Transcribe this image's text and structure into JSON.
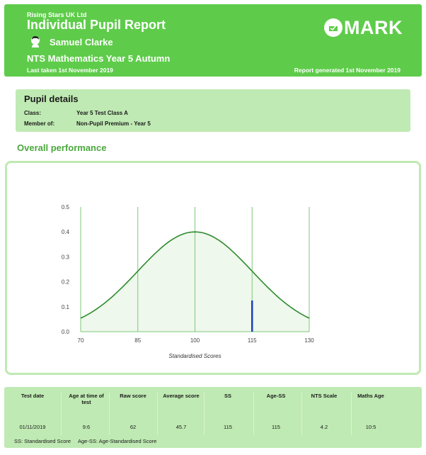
{
  "header": {
    "company": "Rising Stars UK Ltd",
    "report_title": "Individual Pupil Report",
    "pupil_name": "Samuel Clarke",
    "test_name": "NTS Mathematics Year 5 Autumn",
    "last_taken": "Last taken 1st November 2019",
    "generated": "Report generated 1st November 2019",
    "logo_text": "MARK",
    "logo_icon": "mark-logo-icon",
    "avatar_icon": "pupil-avatar-icon",
    "background_color": "#5ecc4a"
  },
  "pupil_details": {
    "title": "Pupil details",
    "rows": [
      {
        "label": "Class:",
        "value": "Year 5 Test Class A"
      },
      {
        "label": "Member of:",
        "value": "Non-Pupil Premium - Year 5"
      }
    ],
    "background_color": "#bfeab3"
  },
  "overall_performance": {
    "title": "Overall performance"
  },
  "chart_data": {
    "type": "area",
    "title": "",
    "xlabel": "Standardised Scores",
    "ylabel": "",
    "xlim": [
      70,
      130
    ],
    "ylim": [
      0,
      0.5
    ],
    "x_ticks": [
      "70",
      "85",
      "100",
      "115",
      "130"
    ],
    "y_ticks": [
      "0.0",
      "0.1",
      "0.2",
      "0.3",
      "0.4",
      "0.5"
    ],
    "curve": {
      "distribution": "normal",
      "mean": 100,
      "sd": 15,
      "peak": 0.4
    },
    "marker": {
      "x": 115,
      "y": 0.125,
      "color": "#1f3fbf"
    },
    "grid": "vertical",
    "line_color": "#2e8b2e",
    "fill_color": "#eef8ec"
  },
  "results": {
    "columns": [
      {
        "header": "Test date",
        "value": "01/11/2019"
      },
      {
        "header": "Age at time of test",
        "value": "9:6"
      },
      {
        "header": "Raw score",
        "value": "62"
      },
      {
        "header": "Average score",
        "value": "45.7"
      },
      {
        "header": "SS",
        "value": "115"
      },
      {
        "header": "Age-SS",
        "value": "115"
      },
      {
        "header": "NTS Scale",
        "value": "4.2"
      },
      {
        "header": "Maths Age",
        "value": "10:5"
      }
    ],
    "legend": [
      "SS: Standardised Score",
      "Age-SS: Age-Standardised Score"
    ]
  }
}
